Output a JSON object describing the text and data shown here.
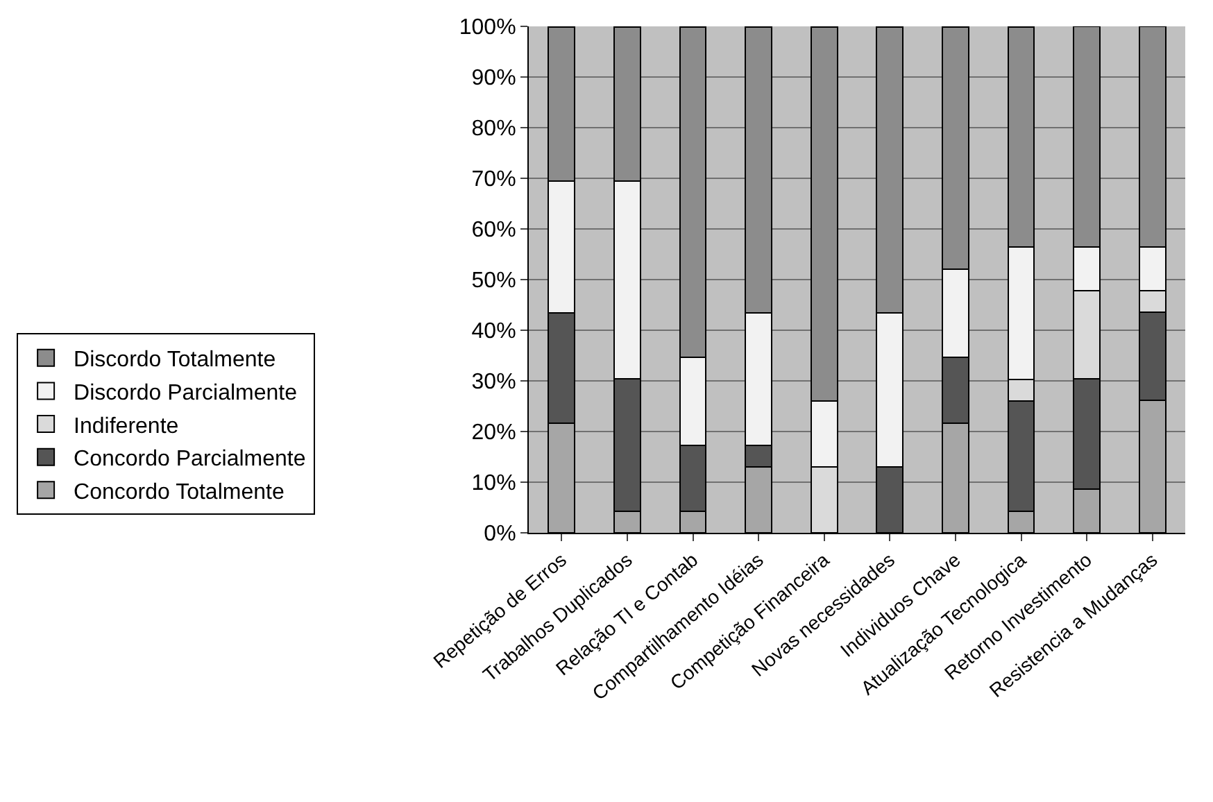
{
  "chart_data": {
    "type": "bar",
    "stacked": true,
    "categories": [
      "Repetição de Erros",
      "Trabalhos Duplicados",
      "Relação TI e Contab",
      "Compartilhamento Idéias",
      "Competição Financeira",
      "Novas necessidades",
      "Individuos Chave",
      "Atualização Tecnologica",
      "Retorno Investimento",
      "Resistencia a Mudanças"
    ],
    "series": [
      {
        "name": "Concordo Totalmente",
        "color": "#a6a6a6",
        "values": [
          21.7,
          4.3,
          4.3,
          13.0,
          0,
          0,
          21.7,
          4.3,
          8.7,
          26.1
        ]
      },
      {
        "name": "Concordo Parcialmente",
        "color": "#555555",
        "values": [
          21.7,
          26.1,
          13.0,
          4.3,
          0,
          13.0,
          13.0,
          21.7,
          21.7,
          17.4
        ]
      },
      {
        "name": "Indiferente",
        "color": "#dadada",
        "values": [
          0,
          0,
          0,
          0,
          13.0,
          0,
          0,
          4.3,
          17.4,
          4.3
        ]
      },
      {
        "name": "Discordo Parcialmente",
        "color": "#f2f2f2",
        "values": [
          26.1,
          39.1,
          17.4,
          26.1,
          13.0,
          30.4,
          17.4,
          26.1,
          8.7,
          8.7
        ]
      },
      {
        "name": "Discordo Totalmente",
        "color": "#8c8c8c",
        "values": [
          30.4,
          30.4,
          65.2,
          56.5,
          73.9,
          56.5,
          47.8,
          43.5,
          43.5,
          43.5
        ]
      }
    ],
    "ylim": [
      0,
      100
    ],
    "yticks": [
      {
        "value": 0,
        "label": "0%"
      },
      {
        "value": 10,
        "label": "10%"
      },
      {
        "value": 20,
        "label": "20%"
      },
      {
        "value": 30,
        "label": "30%"
      },
      {
        "value": 40,
        "label": "40%"
      },
      {
        "value": 50,
        "label": "50%"
      },
      {
        "value": 60,
        "label": "60%"
      },
      {
        "value": 70,
        "label": "70%"
      },
      {
        "value": 80,
        "label": "80%"
      },
      {
        "value": 90,
        "label": "90%"
      },
      {
        "value": 100,
        "label": "100%"
      }
    ],
    "grid": "y",
    "legend": "left"
  }
}
